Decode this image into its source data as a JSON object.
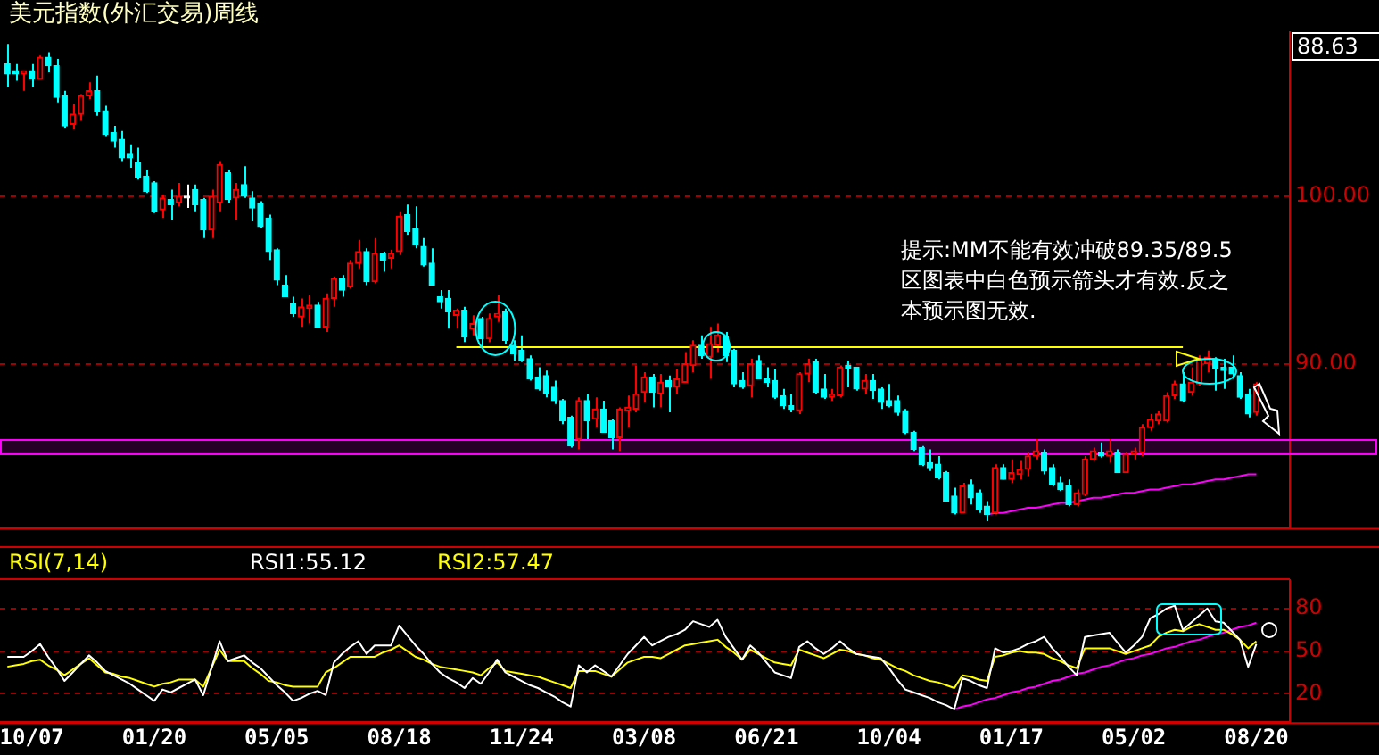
{
  "chart_data": [
    {
      "type": "candlestick",
      "title": "美元指数(外汇交易)周线",
      "legend": false,
      "grid": "y",
      "tick_labels": "y",
      "categories": [
        null,
        null,
        null,
        null,
        null,
        null,
        null,
        null,
        null,
        null,
        null,
        null,
        null,
        null,
        null,
        null,
        null,
        null,
        null,
        null,
        null,
        null,
        null,
        null,
        null,
        null,
        null,
        null,
        null,
        null,
        null,
        null,
        null,
        null,
        null,
        null,
        null,
        null,
        null,
        null,
        null,
        null,
        null,
        null,
        null,
        null,
        null,
        null,
        null,
        null,
        null,
        null,
        null,
        null,
        null,
        null,
        null,
        null,
        null,
        null,
        null,
        null,
        null,
        null,
        null,
        null,
        null,
        null,
        null,
        null,
        null,
        null,
        null,
        null,
        null,
        null,
        null,
        null,
        null,
        null,
        null,
        null,
        null,
        null,
        null,
        null,
        null,
        null,
        null,
        null,
        null,
        null,
        null,
        null,
        null,
        null,
        null,
        null,
        null,
        null,
        null,
        null,
        null,
        null,
        null,
        null,
        null,
        null,
        null,
        null,
        null,
        null,
        null,
        null,
        null,
        null,
        null,
        null,
        null,
        null,
        null,
        null,
        null,
        null,
        null,
        null,
        null,
        null,
        null,
        null,
        null,
        null,
        null,
        null,
        null,
        null,
        null,
        null,
        null,
        null,
        null,
        null,
        null,
        null,
        null,
        null,
        null,
        null,
        null,
        null,
        null,
        null,
        null,
        null
      ],
      "ylim": [
        80.2,
        109.8
      ],
      "yticks": [
        {
          "value": 90,
          "label": "90.00"
        },
        {
          "value": 100,
          "label": "100.00"
        }
      ],
      "ohlc": [
        [
          107.9,
          109.1,
          106.5,
          107.3
        ],
        [
          107.5,
          107.9,
          106.9,
          107.3
        ],
        [
          107.3,
          107.5,
          106.3,
          107.5
        ],
        [
          107.5,
          107.9,
          106.5,
          107.0
        ],
        [
          107.0,
          108.4,
          107.0,
          108.3
        ],
        [
          108.3,
          108.6,
          107.4,
          107.8
        ],
        [
          107.8,
          108.2,
          105.6,
          105.9
        ],
        [
          106.0,
          106.3,
          104.1,
          104.2
        ],
        [
          104.3,
          105.5,
          104.0,
          104.9
        ],
        [
          104.9,
          106.1,
          104.5,
          106.0
        ],
        [
          106.0,
          106.8,
          105.8,
          106.3
        ],
        [
          106.3,
          107.2,
          104.8,
          105.1
        ],
        [
          105.1,
          105.4,
          103.6,
          103.7
        ],
        [
          103.8,
          104.2,
          102.9,
          103.3
        ],
        [
          103.4,
          103.9,
          102.1,
          102.3
        ],
        [
          102.5,
          103.1,
          101.7,
          102.3
        ],
        [
          102.0,
          102.9,
          101.0,
          101.1
        ],
        [
          101.2,
          101.6,
          100.2,
          100.3
        ],
        [
          100.8,
          100.9,
          99.0,
          99.1
        ],
        [
          99.2,
          100.1,
          98.7,
          99.9
        ],
        [
          99.8,
          100.4,
          98.6,
          99.5
        ],
        [
          99.6,
          100.8,
          99.4,
          100.0
        ],
        [
          99.9,
          100.7,
          99.3,
          99.9
        ],
        [
          100.4,
          100.7,
          99.1,
          99.5
        ],
        [
          99.8,
          99.9,
          97.5,
          98.0
        ],
        [
          98.0,
          100.4,
          97.5,
          100.0
        ],
        [
          99.6,
          102.1,
          99.1,
          101.9
        ],
        [
          101.4,
          101.6,
          99.6,
          99.8
        ],
        [
          99.9,
          100.8,
          98.6,
          100.4
        ],
        [
          100.7,
          101.8,
          99.9,
          100.0
        ],
        [
          99.9,
          100.3,
          98.5,
          99.3
        ],
        [
          99.6,
          99.7,
          98.1,
          98.2
        ],
        [
          98.7,
          98.9,
          96.2,
          96.7
        ],
        [
          96.8,
          96.9,
          94.7,
          95.0
        ],
        [
          94.7,
          95.3,
          94.0,
          94.0
        ],
        [
          93.6,
          94.0,
          92.8,
          93.0
        ],
        [
          92.8,
          93.9,
          92.2,
          93.4
        ],
        [
          93.3,
          94.1,
          92.4,
          93.5
        ],
        [
          93.5,
          93.7,
          92.2,
          92.2
        ],
        [
          92.2,
          94.2,
          91.9,
          93.9
        ],
        [
          93.9,
          95.2,
          93.4,
          95.1
        ],
        [
          95.1,
          95.3,
          94.0,
          94.4
        ],
        [
          94.6,
          96.2,
          94.5,
          96.0
        ],
        [
          96.0,
          97.4,
          95.7,
          96.7
        ],
        [
          96.7,
          96.9,
          94.7,
          94.9
        ],
        [
          94.9,
          97.5,
          94.8,
          96.6
        ],
        [
          96.6,
          96.7,
          95.5,
          96.2
        ],
        [
          96.3,
          96.8,
          95.7,
          96.6
        ],
        [
          96.7,
          99.1,
          96.5,
          98.8
        ],
        [
          98.9,
          99.5,
          97.7,
          97.9
        ],
        [
          98.1,
          99.4,
          96.9,
          97.1
        ],
        [
          97.0,
          97.5,
          95.8,
          95.9
        ],
        [
          96.0,
          96.9,
          94.7,
          94.7
        ],
        [
          94.0,
          94.4,
          93.3,
          93.7
        ],
        [
          93.9,
          94.4,
          92.1,
          93.1
        ],
        [
          92.9,
          93.3,
          92.1,
          93.2
        ],
        [
          93.2,
          93.4,
          91.3,
          91.6
        ],
        [
          92.1,
          92.9,
          91.7,
          92.4
        ],
        [
          92.7,
          92.8,
          91.0,
          91.5
        ],
        [
          91.5,
          93.0,
          91.3,
          92.7
        ],
        [
          92.8,
          94.1,
          92.5,
          93.0
        ],
        [
          93.1,
          93.3,
          91.2,
          91.4
        ],
        [
          91.1,
          91.4,
          90.2,
          90.6
        ],
        [
          90.8,
          91.7,
          90.1,
          90.2
        ],
        [
          90.3,
          90.5,
          89.0,
          89.1
        ],
        [
          89.2,
          89.8,
          88.4,
          88.5
        ],
        [
          89.3,
          89.6,
          88.0,
          88.2
        ],
        [
          88.6,
          89.0,
          87.6,
          87.8
        ],
        [
          87.8,
          87.9,
          86.4,
          86.6
        ],
        [
          86.8,
          86.9,
          85.0,
          85.1
        ],
        [
          85.5,
          88.0,
          84.9,
          87.8
        ],
        [
          87.8,
          88.2,
          85.5,
          86.6
        ],
        [
          86.7,
          88.0,
          86.2,
          87.3
        ],
        [
          87.3,
          87.8,
          85.9,
          85.9
        ],
        [
          86.6,
          86.7,
          84.9,
          85.6
        ],
        [
          85.6,
          87.4,
          84.8,
          87.3
        ],
        [
          87.2,
          88.1,
          86.2,
          87.4
        ],
        [
          87.3,
          89.9,
          87.1,
          88.2
        ],
        [
          88.3,
          89.5,
          87.7,
          89.2
        ],
        [
          89.2,
          89.4,
          87.4,
          88.3
        ],
        [
          88.2,
          89.4,
          87.4,
          88.9
        ],
        [
          89.0,
          89.3,
          87.1,
          88.6
        ],
        [
          88.6,
          89.7,
          88.2,
          89.1
        ],
        [
          88.9,
          90.7,
          88.9,
          90.0
        ],
        [
          89.9,
          91.4,
          89.5,
          91.1
        ],
        [
          91.1,
          91.7,
          90.3,
          90.5
        ],
        [
          90.4,
          92.2,
          89.1,
          91.2
        ],
        [
          91.1,
          92.4,
          90.7,
          91.7
        ],
        [
          91.6,
          91.9,
          90.1,
          90.5
        ],
        [
          90.8,
          90.9,
          88.6,
          88.8
        ],
        [
          89.0,
          89.5,
          88.5,
          88.6
        ],
        [
          88.7,
          90.3,
          88.0,
          90.0
        ],
        [
          90.2,
          90.5,
          89.1,
          89.1
        ],
        [
          89.1,
          89.8,
          88.6,
          88.9
        ],
        [
          89.0,
          89.7,
          87.9,
          88.0
        ],
        [
          88.1,
          88.5,
          87.3,
          87.5
        ],
        [
          87.5,
          88.2,
          87.1,
          87.3
        ],
        [
          87.2,
          89.5,
          87.0,
          89.4
        ],
        [
          89.4,
          90.3,
          88.9,
          90.0
        ],
        [
          90.1,
          90.3,
          88.2,
          88.3
        ],
        [
          88.5,
          89.4,
          87.9,
          88.0
        ],
        [
          88.0,
          88.5,
          87.8,
          88.2
        ],
        [
          88.1,
          89.9,
          88.0,
          89.8
        ],
        [
          89.9,
          90.2,
          88.6,
          89.7
        ],
        [
          89.8,
          89.8,
          88.4,
          88.5
        ],
        [
          88.5,
          89.4,
          88.2,
          89.0
        ],
        [
          89.0,
          89.4,
          87.9,
          88.4
        ],
        [
          88.5,
          88.6,
          87.3,
          87.7
        ],
        [
          87.8,
          88.8,
          87.4,
          87.5
        ],
        [
          87.8,
          88.1,
          86.9,
          87.1
        ],
        [
          87.2,
          87.3,
          85.8,
          85.9
        ],
        [
          85.9,
          86.0,
          84.8,
          84.9
        ],
        [
          85.0,
          85.1,
          83.9,
          84.0
        ],
        [
          84.1,
          84.9,
          83.6,
          83.8
        ],
        [
          84.0,
          84.5,
          83.1,
          83.2
        ],
        [
          83.5,
          83.6,
          81.8,
          81.8
        ],
        [
          82.1,
          82.6,
          81.0,
          81.1
        ],
        [
          81.1,
          82.9,
          81.1,
          82.7
        ],
        [
          82.8,
          83.1,
          81.6,
          82.0
        ],
        [
          82.3,
          82.5,
          81.1,
          81.3
        ],
        [
          81.5,
          81.8,
          80.6,
          81.0
        ],
        [
          81.1,
          84.0,
          81.0,
          83.8
        ],
        [
          83.8,
          84.0,
          83.1,
          83.1
        ],
        [
          83.1,
          84.3,
          82.9,
          83.5
        ],
        [
          83.4,
          84.2,
          83.1,
          83.7
        ],
        [
          83.7,
          84.7,
          83.3,
          84.5
        ],
        [
          84.5,
          85.5,
          84.3,
          84.8
        ],
        [
          84.7,
          84.9,
          83.4,
          83.6
        ],
        [
          83.8,
          84.0,
          82.7,
          82.8
        ],
        [
          82.9,
          83.3,
          82.4,
          82.5
        ],
        [
          82.7,
          83.1,
          81.5,
          81.6
        ],
        [
          81.6,
          82.5,
          81.5,
          82.3
        ],
        [
          82.2,
          84.5,
          82.1,
          84.3
        ],
        [
          84.3,
          85.0,
          84.2,
          84.8
        ],
        [
          84.7,
          85.3,
          84.4,
          84.5
        ],
        [
          84.5,
          85.5,
          84.1,
          84.8
        ],
        [
          84.7,
          84.9,
          83.5,
          83.5
        ],
        [
          83.5,
          84.7,
          83.5,
          84.6
        ],
        [
          84.6,
          85.0,
          84.3,
          84.8
        ],
        [
          84.7,
          86.4,
          84.5,
          86.2
        ],
        [
          86.2,
          87.0,
          86.0,
          86.7
        ],
        [
          86.6,
          87.2,
          86.4,
          87.0
        ],
        [
          86.6,
          88.3,
          86.5,
          88.1
        ],
        [
          88.1,
          89.0,
          87.9,
          88.8
        ],
        [
          88.8,
          89.5,
          87.7,
          87.8
        ],
        [
          88.3,
          89.8,
          88.1,
          88.9
        ],
        [
          88.8,
          90.5,
          88.7,
          90.3
        ],
        [
          90.0,
          90.8,
          89.5,
          90.4
        ],
        [
          90.3,
          90.4,
          88.4,
          89.7
        ],
        [
          89.8,
          90.3,
          88.5,
          89.6
        ],
        [
          89.8,
          90.5,
          89.1,
          89.4
        ],
        [
          89.3,
          89.5,
          87.9,
          88.0
        ],
        [
          88.2,
          88.5,
          86.8,
          87.0
        ],
        [
          87.1,
          88.9,
          86.9,
          88.8
        ]
      ],
      "colors": [
        "#00ffff",
        "#00ffff",
        "#ff0000",
        "#00ffff",
        "#ff0000",
        "#00ffff",
        "#00ffff",
        "#00ffff",
        "#ff0000",
        "#ff0000",
        "#ff0000",
        "#00ffff",
        "#00ffff",
        "#00ffff",
        "#00ffff",
        "#00ffff",
        "#00ffff",
        "#00ffff",
        "#00ffff",
        "#ff0000",
        "#00ffff",
        "#ff0000",
        "#ffffff",
        "#00ffff",
        "#00ffff",
        "#ff0000",
        "#ff0000",
        "#00ffff",
        "#ff0000",
        "#00ffff",
        "#00ffff",
        "#00ffff",
        "#00ffff",
        "#00ffff",
        "#00ffff",
        "#00ffff",
        "#ff0000",
        "#ff0000",
        "#00ffff",
        "#ff0000",
        "#ff0000",
        "#00ffff",
        "#ff0000",
        "#ff0000",
        "#00ffff",
        "#ff0000",
        "#00ffff",
        "#ff0000",
        "#ff0000",
        "#00ffff",
        "#00ffff",
        "#00ffff",
        "#00ffff",
        "#00ffff",
        "#00ffff",
        "#ff0000",
        "#00ffff",
        "#ff0000",
        "#00ffff",
        "#ff0000",
        "#ff0000",
        "#00ffff",
        "#00ffff",
        "#00ffff",
        "#00ffff",
        "#00ffff",
        "#00ffff",
        "#00ffff",
        "#00ffff",
        "#00ffff",
        "#ff0000",
        "#00ffff",
        "#ff0000",
        "#00ffff",
        "#00ffff",
        "#ff0000",
        "#ff0000",
        "#ff0000",
        "#ff0000",
        "#00ffff",
        "#ff0000",
        "#00ffff",
        "#ff0000",
        "#ff0000",
        "#ff0000",
        "#00ffff",
        "#ff0000",
        "#ff0000",
        "#00ffff",
        "#00ffff",
        "#00ffff",
        "#ff0000",
        "#00ffff",
        "#00ffff",
        "#00ffff",
        "#00ffff",
        "#00ffff",
        "#ff0000",
        "#ff0000",
        "#00ffff",
        "#00ffff",
        "#ff0000",
        "#ff0000",
        "#00ffff",
        "#00ffff",
        "#ff0000",
        "#00ffff",
        "#00ffff",
        "#00ffff",
        "#00ffff",
        "#00ffff",
        "#00ffff",
        "#00ffff",
        "#00ffff",
        "#00ffff",
        "#00ffff",
        "#00ffff",
        "#ff0000",
        "#00ffff",
        "#00ffff",
        "#00ffff",
        "#ff0000",
        "#00ffff",
        "#ff0000",
        "#ff0000",
        "#ff0000",
        "#ff0000",
        "#00ffff",
        "#00ffff",
        "#00ffff",
        "#00ffff",
        "#ff0000",
        "#ff0000",
        "#ff0000",
        "#00ffff",
        "#ff0000",
        "#00ffff",
        "#ff0000",
        "#ff0000",
        "#ff0000",
        "#ff0000",
        "#ff0000",
        "#ff0000",
        "#ff0000",
        "#00ffff",
        "#ff0000",
        "#ff0000",
        "#ff0000",
        "#00ffff",
        "#00ffff",
        "#00ffff",
        "#00ffff",
        "#00ffff",
        "#ff0000"
      ],
      "series": [
        {
          "type": "line",
          "color": "#ffff00",
          "values": [
            null,
            null,
            null,
            null,
            null,
            null,
            null,
            null,
            null,
            null,
            null,
            null,
            null,
            null,
            null,
            null,
            null,
            null,
            null,
            null,
            null,
            null,
            null,
            null,
            null,
            null,
            null,
            null,
            null,
            null,
            null,
            null,
            null,
            null,
            null,
            null,
            null,
            null,
            null,
            null,
            null,
            null,
            null,
            null,
            null,
            null,
            null,
            null,
            null,
            null,
            null,
            null,
            null,
            null,
            null,
            91.0,
            91.0,
            91.0,
            91.0,
            91.0,
            91.0,
            91.0,
            91.0,
            91.0,
            91.0,
            91.0,
            91.0,
            91.0,
            91.0,
            91.0,
            91.0,
            91.0,
            91.0,
            91.0,
            91.0,
            91.0,
            91.0,
            91.0,
            91.0,
            91.0,
            91.0,
            91.0,
            91.0,
            91.0,
            91.0,
            91.0,
            91.0,
            91.0,
            91.0,
            91.0,
            91.0,
            91.0,
            91.0,
            91.0,
            91.0,
            91.0,
            91.0,
            91.0,
            91.0,
            91.0,
            91.0,
            91.0,
            91.0,
            91.0,
            91.0,
            91.0,
            91.0,
            91.0,
            91.0,
            91.0,
            91.0,
            91.0,
            91.0,
            91.0,
            91.0,
            91.0,
            91.0,
            91.0,
            91.0,
            91.0,
            91.0,
            91.0,
            91.0,
            91.0,
            91.0,
            91.0,
            91.0,
            91.0,
            91.0,
            91.0,
            91.0,
            91.0,
            91.0,
            91.0,
            91.0,
            91.0,
            91.0,
            91.0,
            91.0,
            91.0,
            91.0,
            91.0,
            91.0,
            91.0,
            91.0,
            null,
            null,
            null,
            null,
            null,
            null,
            null,
            null,
            null
          ]
        },
        {
          "type": "line",
          "color": "#ff00ff",
          "values": [
            null,
            null,
            null,
            null,
            null,
            null,
            null,
            null,
            null,
            null,
            null,
            null,
            null,
            null,
            null,
            null,
            null,
            null,
            null,
            null,
            null,
            null,
            null,
            null,
            null,
            null,
            null,
            null,
            null,
            null,
            null,
            null,
            null,
            null,
            null,
            null,
            null,
            null,
            null,
            null,
            null,
            null,
            null,
            null,
            null,
            null,
            null,
            null,
            null,
            null,
            null,
            null,
            null,
            null,
            null,
            null,
            null,
            null,
            null,
            null,
            null,
            null,
            null,
            null,
            null,
            null,
            null,
            null,
            null,
            null,
            null,
            null,
            null,
            null,
            null,
            null,
            null,
            null,
            null,
            null,
            null,
            null,
            null,
            null,
            null,
            null,
            null,
            null,
            null,
            null,
            null,
            null,
            null,
            null,
            null,
            null,
            null,
            null,
            null,
            null,
            null,
            null,
            null,
            null,
            null,
            null,
            null,
            null,
            null,
            null,
            null,
            null,
            null,
            null,
            null,
            null,
            null,
            null,
            null,
            null,
            81.0,
            81.1,
            81.1,
            81.2,
            81.3,
            81.4,
            81.4,
            81.5,
            81.6,
            81.7,
            81.7,
            81.8,
            81.9,
            82.0,
            82.0,
            82.1,
            82.2,
            82.3,
            82.3,
            82.4,
            82.5,
            82.5,
            82.6,
            82.7,
            82.8,
            82.8,
            82.9,
            83.0,
            83.1,
            83.1,
            83.2,
            83.3,
            83.4,
            83.4
          ]
        }
      ],
      "bands": [
        {
          "axis": "y",
          "from": 84.6,
          "to": 85.5,
          "color": "#ff00ff"
        }
      ],
      "annotations": [
        "88.63",
        "提示:MM不能有效冲破89.35/89.5区图表中白色预示箭头才有效.反之本预示图无效."
      ]
    },
    {
      "type": "line",
      "title": "RSI(7,14)",
      "legend": "top left",
      "grid": "y",
      "marker": "none",
      "categories": [
        null,
        null,
        null,
        "10/07",
        null,
        null,
        null,
        null,
        null,
        null,
        null,
        null,
        null,
        null,
        null,
        null,
        null,
        null,
        "01/20",
        null,
        null,
        null,
        null,
        null,
        null,
        null,
        null,
        null,
        null,
        null,
        null,
        null,
        null,
        "05/05",
        null,
        null,
        null,
        null,
        null,
        null,
        null,
        null,
        null,
        null,
        null,
        null,
        null,
        null,
        "08/18",
        null,
        null,
        null,
        null,
        null,
        null,
        null,
        null,
        null,
        null,
        null,
        null,
        null,
        null,
        "11/24",
        null,
        null,
        null,
        null,
        null,
        null,
        null,
        null,
        null,
        null,
        null,
        null,
        null,
        null,
        "03/08",
        null,
        null,
        null,
        null,
        null,
        null,
        null,
        null,
        null,
        null,
        null,
        null,
        null,
        null,
        "06/21",
        null,
        null,
        null,
        null,
        null,
        null,
        null,
        null,
        null,
        null,
        null,
        null,
        null,
        null,
        "10/04",
        null,
        null,
        null,
        null,
        null,
        null,
        null,
        null,
        null,
        null,
        null,
        null,
        null,
        null,
        "01/17",
        null,
        null,
        null,
        null,
        null,
        null,
        null,
        null,
        null,
        null,
        null,
        null,
        null,
        null,
        "05/02",
        null,
        null,
        null,
        null,
        null,
        null,
        null,
        null,
        null,
        null,
        null,
        null,
        null,
        null,
        "08/20"
      ],
      "ylim": [
        0,
        100
      ],
      "yticks": [
        20,
        50,
        80
      ],
      "series": [
        {
          "name": "RSI1:55.12",
          "color": "#ffffff",
          "values": [
            46,
            46,
            46,
            50,
            55,
            46,
            38,
            29,
            35,
            41,
            47,
            42,
            36,
            33,
            30,
            27,
            23,
            19,
            15,
            23,
            21,
            24,
            27,
            30,
            19,
            38,
            57,
            43,
            45,
            47,
            42,
            38,
            32,
            26,
            21,
            15,
            17,
            20,
            22,
            19,
            42,
            48,
            53,
            57,
            48,
            54,
            54,
            54,
            68,
            61,
            54,
            48,
            41,
            35,
            31,
            28,
            24,
            31,
            27,
            35,
            44,
            35,
            32,
            29,
            26,
            24,
            21,
            18,
            14,
            11,
            40,
            35,
            40,
            36,
            32,
            40,
            48,
            54,
            60,
            54,
            57,
            60,
            62,
            65,
            71,
            69,
            67,
            72,
            60,
            52,
            44,
            54,
            49,
            42,
            35,
            33,
            31,
            53,
            57,
            52,
            48,
            52,
            57,
            52,
            48,
            47,
            46,
            45,
            38,
            30,
            23,
            21,
            19,
            17,
            14,
            12,
            9,
            31,
            29,
            26,
            24,
            52,
            49,
            50,
            52,
            55,
            57,
            60,
            52,
            46,
            39,
            33,
            60,
            61,
            62,
            63,
            56,
            49,
            54,
            60,
            73,
            76,
            80,
            82,
            65,
            70,
            75,
            80,
            71,
            70,
            64,
            58,
            39,
            55
          ]
        },
        {
          "name": "RSI2:57.47",
          "color": "#ffff00",
          "values": [
            39,
            40,
            41,
            43,
            44,
            40,
            37,
            33,
            37,
            41,
            45,
            40,
            35,
            34,
            32,
            31,
            29,
            27,
            25,
            27,
            28,
            30,
            30,
            30,
            25,
            38,
            51,
            43,
            43,
            43,
            38,
            34,
            29,
            28,
            26,
            25,
            25,
            25,
            25,
            35,
            38,
            42,
            46,
            46,
            46,
            46,
            49,
            51,
            54,
            50,
            46,
            44,
            41,
            39,
            38,
            37,
            36,
            35,
            33,
            38,
            42,
            36,
            35,
            34,
            33,
            32,
            30,
            28,
            26,
            24,
            36,
            36,
            36,
            34,
            32,
            37,
            42,
            44,
            46,
            46,
            45,
            48,
            51,
            54,
            55,
            56,
            57,
            58,
            53,
            49,
            44,
            51,
            48,
            45,
            42,
            41,
            40,
            51,
            49,
            47,
            45,
            48,
            51,
            50,
            48,
            47,
            45,
            44,
            41,
            38,
            36,
            33,
            31,
            29,
            28,
            26,
            24,
            33,
            32,
            30,
            29,
            46,
            47,
            49,
            50,
            49,
            49,
            48,
            45,
            43,
            40,
            38,
            52,
            52,
            52,
            52,
            50,
            48,
            50,
            52,
            54,
            60,
            63,
            65,
            64,
            67,
            69,
            67,
            65,
            65,
            62,
            58,
            52,
            57
          ]
        },
        {
          "type": "line",
          "color": "#ff00ff",
          "values": [
            null,
            null,
            null,
            null,
            null,
            null,
            null,
            null,
            null,
            null,
            null,
            null,
            null,
            null,
            null,
            null,
            null,
            null,
            null,
            null,
            null,
            null,
            null,
            null,
            null,
            null,
            null,
            null,
            null,
            null,
            null,
            null,
            null,
            null,
            null,
            null,
            null,
            null,
            null,
            null,
            null,
            null,
            null,
            null,
            null,
            null,
            null,
            null,
            null,
            null,
            null,
            null,
            null,
            null,
            null,
            null,
            null,
            null,
            null,
            null,
            null,
            null,
            null,
            null,
            null,
            null,
            null,
            null,
            null,
            null,
            null,
            null,
            null,
            null,
            null,
            null,
            null,
            null,
            null,
            null,
            null,
            null,
            null,
            null,
            null,
            null,
            null,
            null,
            null,
            null,
            null,
            null,
            null,
            null,
            null,
            null,
            null,
            null,
            null,
            null,
            null,
            null,
            null,
            null,
            null,
            null,
            null,
            null,
            null,
            null,
            null,
            null,
            null,
            null,
            null,
            null,
            9,
            11,
            12,
            14,
            16,
            17,
            19,
            21,
            22,
            24,
            25,
            27,
            29,
            30,
            32,
            34,
            35,
            37,
            39,
            40,
            42,
            44,
            45,
            47,
            48,
            50,
            52,
            53,
            55,
            57,
            58,
            60,
            62,
            63,
            65,
            67,
            68,
            70
          ]
        }
      ]
    }
  ]
}
